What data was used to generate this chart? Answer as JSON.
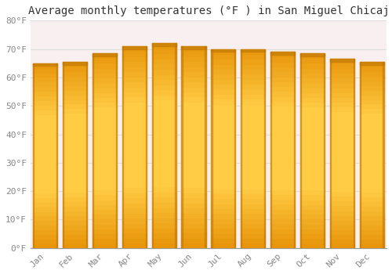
{
  "months": [
    "Jan",
    "Feb",
    "Mar",
    "Apr",
    "May",
    "Jun",
    "Jul",
    "Aug",
    "Sep",
    "Oct",
    "Nov",
    "Dec"
  ],
  "values": [
    65.0,
    65.5,
    68.5,
    71.0,
    72.0,
    71.0,
    70.0,
    70.0,
    69.0,
    68.5,
    66.5,
    65.5
  ],
  "bar_color_top": "#E8950A",
  "bar_color_mid": "#FFCC44",
  "bar_color_bottom": "#E8950A",
  "bar_edge_color": "#C07808",
  "background_color": "#FFFFFF",
  "plot_bg_color": "#F8F0F0",
  "title": "Average monthly temperatures (°F ) in San Miguel Chicaj",
  "ylim": [
    0,
    80
  ],
  "ytick_step": 10,
  "grid_color": "#DDDDDD",
  "title_fontsize": 10,
  "tick_fontsize": 8,
  "font_family": "monospace",
  "bar_width": 0.82
}
